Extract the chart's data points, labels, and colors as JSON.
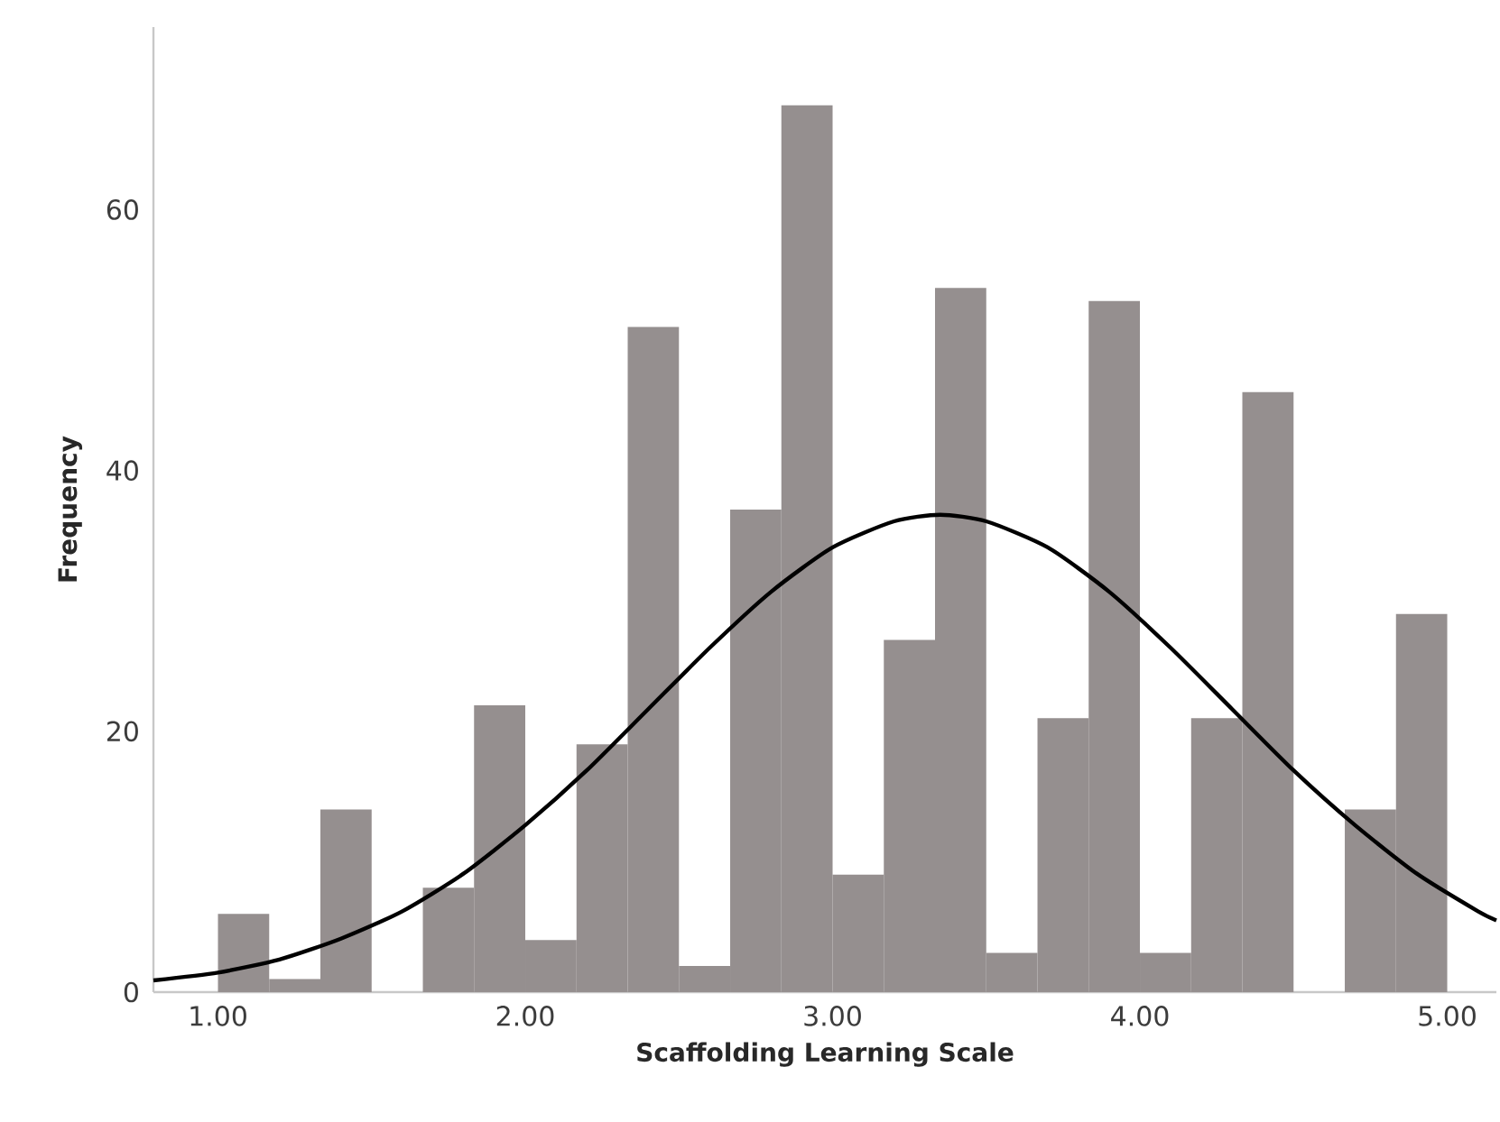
{
  "chart_data": {
    "type": "histogram",
    "xlabel": "Scaffolding Learning Scale",
    "ylabel": "Frequency",
    "color": "#958f8f",
    "bins": [
      1.0,
      1.1667,
      1.3333,
      1.5,
      1.6667,
      1.8333,
      2.0,
      2.1667,
      2.3333,
      2.5,
      2.6667,
      2.8333,
      3.0,
      3.1667,
      3.3333,
      3.5,
      3.6667,
      3.8333,
      4.0,
      4.1667,
      4.3333,
      4.5,
      4.6667,
      4.8333,
      5.0
    ],
    "values": [
      6,
      1,
      14,
      0,
      8,
      22,
      4,
      19,
      51,
      2,
      37,
      68,
      9,
      27,
      54,
      3,
      21,
      53,
      3,
      21,
      46,
      0,
      14,
      29
    ],
    "series": [
      {
        "type": "line",
        "color": "#000000",
        "x": [
          0.79,
          1.0,
          1.2,
          1.4,
          1.6,
          1.8,
          2.0,
          2.2,
          2.4,
          2.6,
          2.8,
          3.0,
          3.2,
          3.35,
          3.5,
          3.7,
          3.9,
          4.1,
          4.3,
          4.5,
          4.7,
          4.9,
          5.1,
          5.16
        ],
        "values": [
          0.9,
          1.5,
          2.5,
          4.1,
          6.2,
          9.1,
          12.8,
          17.0,
          21.7,
          26.4,
          30.7,
          34.1,
          36.1,
          36.6,
          36.1,
          34.1,
          30.7,
          26.4,
          21.7,
          17.0,
          12.8,
          9.1,
          6.2,
          5.5
        ]
      }
    ],
    "xlim": [
      0.79,
      5.16
    ],
    "ylim": [
      0,
      74
    ],
    "xticks": [
      {
        "value": 1,
        "label": "1.00"
      },
      {
        "value": 2,
        "label": "2.00"
      },
      {
        "value": 3,
        "label": "3.00"
      },
      {
        "value": 4,
        "label": "4.00"
      },
      {
        "value": 5,
        "label": "5.00"
      }
    ],
    "yticks": [
      0,
      20,
      40,
      60
    ],
    "grid": false
  }
}
